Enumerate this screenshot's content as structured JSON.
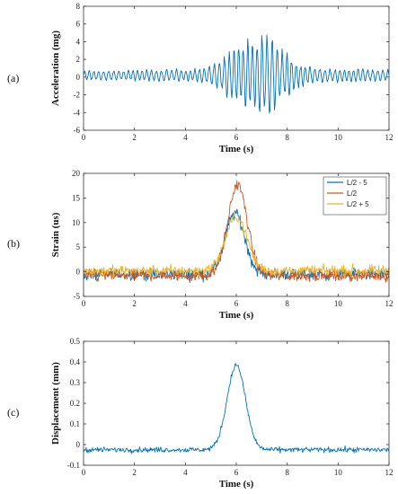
{
  "chart_data": [
    {
      "type": "line",
      "panel_label": "(a)",
      "xlabel": "Time (s)",
      "ylabel": "Acceleration (mg)",
      "xlim": [
        0,
        12
      ],
      "ylim": [
        -6,
        8
      ],
      "xticks": [
        0,
        2,
        4,
        6,
        8,
        10,
        12
      ],
      "yticks": [
        -6,
        -4,
        -2,
        0,
        2,
        4,
        6,
        8
      ],
      "grid": false,
      "series": [
        {
          "color": "#0072BD",
          "generator": "oscillation",
          "envelope": [
            [
              0,
              0.6
            ],
            [
              4.5,
              0.8
            ],
            [
              5.2,
              1.6
            ],
            [
              5.8,
              3.0
            ],
            [
              6.3,
              4.2
            ],
            [
              6.8,
              5.2
            ],
            [
              7.2,
              5.3
            ],
            [
              7.7,
              3.5
            ],
            [
              8.5,
              1.4
            ],
            [
              9.5,
              0.9
            ],
            [
              12,
              0.7
            ]
          ],
          "baseline": 0.2
        }
      ]
    },
    {
      "type": "line",
      "panel_label": "(b)",
      "xlabel": "Time (s)",
      "ylabel": "Strain (us)",
      "xlim": [
        0,
        12
      ],
      "ylim": [
        -5,
        20
      ],
      "xticks": [
        0,
        2,
        4,
        6,
        8,
        10,
        12
      ],
      "yticks": [
        -5,
        0,
        5,
        10,
        15,
        20
      ],
      "grid": false,
      "legend_position": "top-right",
      "series": [
        {
          "name": "L/2 - 5",
          "color": "#0072BD",
          "generator": "pulse",
          "peak": 12.4,
          "center": 5.95,
          "width": 0.38,
          "baseline": -0.5,
          "noise": 1.1
        },
        {
          "name": "L/2",
          "color": "#D95319",
          "generator": "pulse",
          "peak": 18.5,
          "center": 6.05,
          "width": 0.38,
          "baseline": -0.8,
          "noise": 1.1
        },
        {
          "name": "L/2 + 5",
          "color": "#EDB120",
          "generator": "pulse",
          "peak": 11.0,
          "center": 6.0,
          "width": 0.42,
          "baseline": 0.2,
          "noise": 1.0
        }
      ]
    },
    {
      "type": "line",
      "panel_label": "(c)",
      "xlabel": "Time (s)",
      "ylabel": "Displacement (mm)",
      "xlim": [
        0,
        12
      ],
      "ylim": [
        -0.1,
        0.5
      ],
      "xticks": [
        0,
        2,
        4,
        6,
        8,
        10,
        12
      ],
      "yticks": [
        -0.1,
        0,
        0.1,
        0.2,
        0.3,
        0.4,
        0.5
      ],
      "grid": false,
      "series": [
        {
          "color": "#0072BD",
          "generator": "pulse",
          "peak": 0.41,
          "center": 6.0,
          "width": 0.36,
          "baseline": -0.025,
          "noise": 0.012
        }
      ]
    }
  ]
}
